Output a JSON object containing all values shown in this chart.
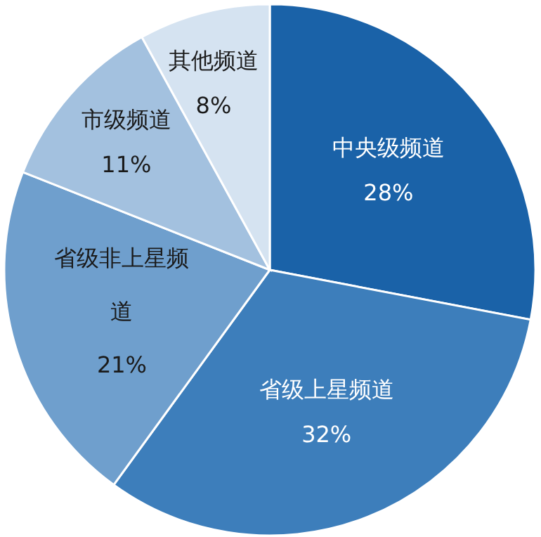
{
  "chart_data": {
    "type": "pie",
    "categories": [
      "中央级频道",
      "省级上星频道",
      "省级非上星频道",
      "市级频道",
      "其他频道"
    ],
    "values": [
      28,
      32,
      21,
      11,
      8
    ],
    "colors": [
      "#1a62a8",
      "#3d7ebb",
      "#6f9fcd",
      "#a3c1df",
      "#d5e3f1"
    ],
    "value_labels": [
      "28%",
      "32%",
      "21%",
      "11%",
      "8%"
    ]
  }
}
